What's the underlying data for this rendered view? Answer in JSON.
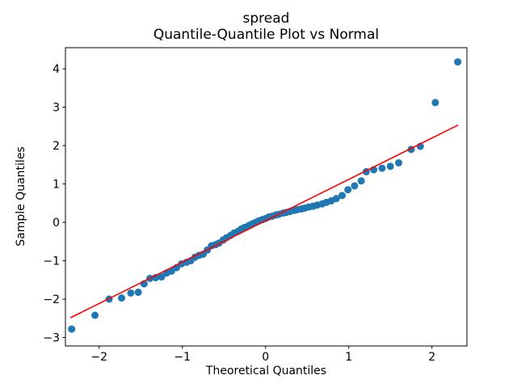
{
  "figure": {
    "title_line1": "spread",
    "title_line2": "Quantile-Quantile Plot vs Normal"
  },
  "chart_data": {
    "type": "scatter",
    "title": "spread — Quantile-Quantile Plot vs Normal",
    "xlabel": "Theoretical Quantiles",
    "ylabel": "Sample Quantiles",
    "xlim": [
      -2.405,
      2.42
    ],
    "ylim": [
      -3.22,
      4.55
    ],
    "x_ticks": [
      -2,
      -1,
      0,
      1,
      2
    ],
    "y_ticks": [
      -3,
      -2,
      -1,
      0,
      1,
      2,
      3,
      4
    ],
    "grid": false,
    "legend": null,
    "marker_color": "#1f77b4",
    "line_color": "#ff0000",
    "background": "#ffffff",
    "reference_line": {
      "x1": -2.34,
      "y1": -2.48,
      "x2": 2.31,
      "y2": 2.53
    },
    "points": [
      [
        -2.33,
        -2.78
      ],
      [
        -2.05,
        -2.42
      ],
      [
        -1.88,
        -2.0
      ],
      [
        -1.73,
        -1.97
      ],
      [
        -1.62,
        -1.84
      ],
      [
        -1.53,
        -1.82
      ],
      [
        -1.46,
        -1.6
      ],
      [
        -1.39,
        -1.46
      ],
      [
        -1.32,
        -1.44
      ],
      [
        -1.25,
        -1.42
      ],
      [
        -1.19,
        -1.32
      ],
      [
        -1.13,
        -1.27
      ],
      [
        -1.07,
        -1.18
      ],
      [
        -1.01,
        -1.08
      ],
      [
        -0.95,
        -1.04
      ],
      [
        -0.9,
        -1.0
      ],
      [
        -0.85,
        -0.91
      ],
      [
        -0.8,
        -0.86
      ],
      [
        -0.75,
        -0.83
      ],
      [
        -0.7,
        -0.72
      ],
      [
        -0.65,
        -0.61
      ],
      [
        -0.6,
        -0.58
      ],
      [
        -0.56,
        -0.54
      ],
      [
        -0.51,
        -0.46
      ],
      [
        -0.47,
        -0.4
      ],
      [
        -0.42,
        -0.34
      ],
      [
        -0.38,
        -0.28
      ],
      [
        -0.33,
        -0.23
      ],
      [
        -0.29,
        -0.17
      ],
      [
        -0.25,
        -0.13
      ],
      [
        -0.2,
        -0.08
      ],
      [
        -0.16,
        -0.04
      ],
      [
        -0.12,
        0.0
      ],
      [
        -0.08,
        0.04
      ],
      [
        -0.04,
        0.07
      ],
      [
        0.0,
        0.1
      ],
      [
        0.04,
        0.14
      ],
      [
        0.08,
        0.16
      ],
      [
        0.12,
        0.19
      ],
      [
        0.16,
        0.21
      ],
      [
        0.21,
        0.24
      ],
      [
        0.25,
        0.26
      ],
      [
        0.29,
        0.28
      ],
      [
        0.34,
        0.31
      ],
      [
        0.38,
        0.33
      ],
      [
        0.43,
        0.35
      ],
      [
        0.47,
        0.37
      ],
      [
        0.52,
        0.4
      ],
      [
        0.57,
        0.42
      ],
      [
        0.62,
        0.45
      ],
      [
        0.68,
        0.48
      ],
      [
        0.73,
        0.52
      ],
      [
        0.79,
        0.56
      ],
      [
        0.85,
        0.62
      ],
      [
        0.92,
        0.7
      ],
      [
        0.99,
        0.85
      ],
      [
        1.07,
        0.95
      ],
      [
        1.15,
        1.08
      ],
      [
        1.21,
        1.32
      ],
      [
        1.3,
        1.37
      ],
      [
        1.4,
        1.41
      ],
      [
        1.5,
        1.46
      ],
      [
        1.6,
        1.55
      ],
      [
        1.75,
        1.9
      ],
      [
        1.86,
        1.98
      ],
      [
        2.04,
        3.12
      ],
      [
        2.31,
        4.18
      ]
    ]
  }
}
